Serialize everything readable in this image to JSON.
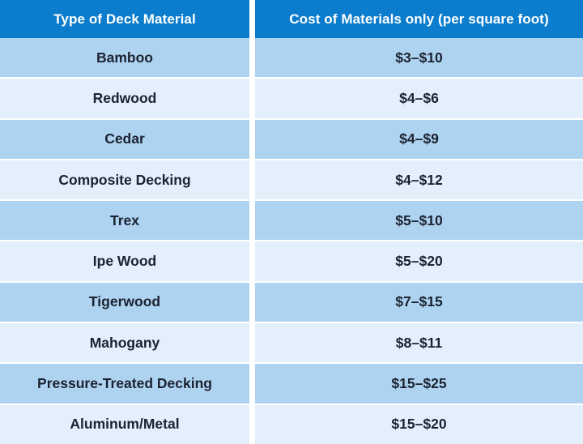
{
  "table": {
    "columns": [
      {
        "label": "Type of Deck Material"
      },
      {
        "label": "Cost of Materials only (per square foot)"
      }
    ],
    "rows": [
      {
        "material": "Bamboo",
        "cost": "$3–$10"
      },
      {
        "material": "Redwood",
        "cost": "$4–$6"
      },
      {
        "material": "Cedar",
        "cost": "$4–$9"
      },
      {
        "material": "Composite Decking",
        "cost": "$4–$12"
      },
      {
        "material": "Trex",
        "cost": "$5–$10"
      },
      {
        "material": "Ipe Wood",
        "cost": "$5–$20"
      },
      {
        "material": "Tigerwood",
        "cost": "$7–$15"
      },
      {
        "material": "Mahogany",
        "cost": "$8–$11"
      },
      {
        "material": "Pressure-Treated Decking",
        "cost": "$15–$25"
      },
      {
        "material": "Aluminum/Metal",
        "cost": "$15–$20"
      }
    ]
  },
  "colors": {
    "header_bg": "#0c7ccd",
    "header_text": "#ffffff",
    "row_alt_dark": "#aed3f0",
    "row_alt_light": "#e3effb",
    "gap": "#ffffff",
    "cell_text": "#1b2230"
  },
  "chart_data": {
    "type": "table",
    "title": "",
    "columns": [
      "Type of Deck Material",
      "Cost of Materials only (per square foot)"
    ],
    "categories": [
      "Bamboo",
      "Redwood",
      "Cedar",
      "Composite Decking",
      "Trex",
      "Ipe Wood",
      "Tigerwood",
      "Mahogany",
      "Pressure-Treated Decking",
      "Aluminum/Metal"
    ],
    "series": [
      {
        "name": "Cost low ($/sq ft)",
        "values": [
          3,
          4,
          4,
          4,
          5,
          5,
          7,
          8,
          15,
          15
        ]
      },
      {
        "name": "Cost high ($/sq ft)",
        "values": [
          10,
          6,
          9,
          12,
          10,
          20,
          15,
          11,
          25,
          20
        ]
      }
    ],
    "cost_labels": [
      "$3–$10",
      "$4–$6",
      "$4–$9",
      "$4–$12",
      "$5–$10",
      "$5–$20",
      "$7–$15",
      "$8–$11",
      "$15–$25",
      "$15–$20"
    ]
  }
}
